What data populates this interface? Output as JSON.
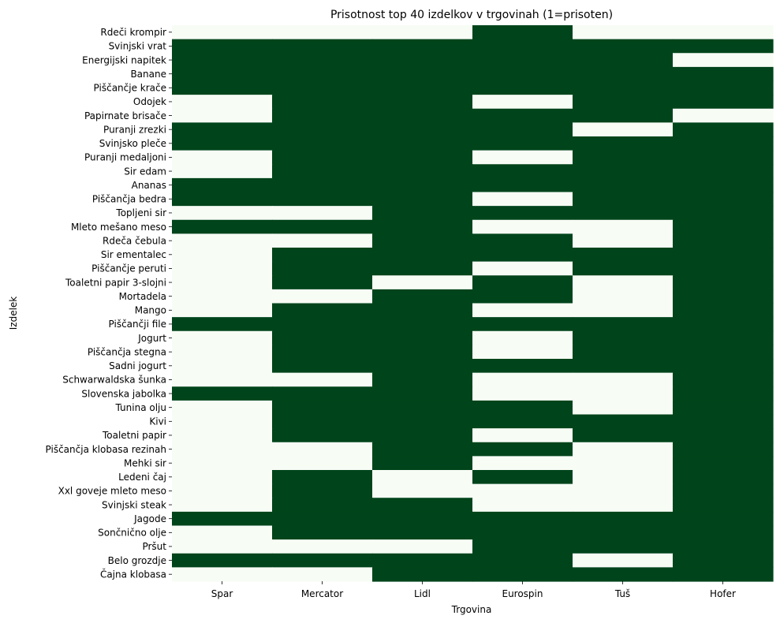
{
  "chart_data": {
    "type": "heatmap",
    "title": "Prisotnost top 40 izdelkov v trgovinah (1=prisoten)",
    "xlabel": "Trgovina",
    "ylabel": "Izdelek",
    "colors": {
      "present": "#00441b",
      "absent": "#f7fcf5"
    },
    "value_range": [
      0,
      1
    ],
    "colorbar": false,
    "grid": false,
    "stores": [
      "Spar",
      "Mercator",
      "Lidl",
      "Eurospin",
      "Tuš",
      "Hofer"
    ],
    "products": [
      "Rdeči krompir",
      "Svinjski vrat",
      "Energijski napitek",
      "Banane",
      "Piščančje krače",
      "Odojek",
      "Papirnate brisače",
      "Puranji zrezki",
      "Svinjsko pleče",
      "Puranji medaljoni",
      "Sir edam",
      "Ananas",
      "Piščančja bedra",
      "Topljeni sir",
      "Mleto mešano meso",
      "Rdeča čebula",
      "Sir ementalec",
      "Piščančje peruti",
      "Toaletni papir 3-slojni",
      "Mortadela",
      "Mango",
      "Piščančji file",
      "Jogurt",
      "Piščančja stegna",
      "Sadni jogurt",
      "Schwarwaldska šunka",
      "Slovenska jabolka",
      "Tunina olju",
      "Kivi",
      "Toaletni papir",
      "Piščančja klobasa rezinah",
      "Mehki sir",
      "Ledeni čaj",
      "Xxl goveje mleto meso",
      "Svinjski steak",
      "Jagode",
      "Sončnično olje",
      "Pršut",
      "Belo grozdje",
      "Čajna klobasa"
    ],
    "values": [
      [
        0,
        0,
        0,
        1,
        0,
        0
      ],
      [
        1,
        1,
        1,
        1,
        1,
        1
      ],
      [
        1,
        1,
        1,
        1,
        1,
        0
      ],
      [
        1,
        1,
        1,
        1,
        1,
        1
      ],
      [
        1,
        1,
        1,
        1,
        1,
        1
      ],
      [
        0,
        1,
        1,
        0,
        1,
        1
      ],
      [
        0,
        1,
        1,
        1,
        1,
        0
      ],
      [
        1,
        1,
        1,
        1,
        0,
        1
      ],
      [
        1,
        1,
        1,
        1,
        1,
        1
      ],
      [
        0,
        1,
        1,
        0,
        1,
        1
      ],
      [
        0,
        1,
        1,
        1,
        1,
        1
      ],
      [
        1,
        1,
        1,
        1,
        1,
        1
      ],
      [
        1,
        1,
        1,
        0,
        1,
        1
      ],
      [
        0,
        0,
        1,
        1,
        1,
        1
      ],
      [
        1,
        1,
        1,
        0,
        0,
        1
      ],
      [
        0,
        0,
        1,
        1,
        0,
        1
      ],
      [
        0,
        1,
        1,
        1,
        1,
        1
      ],
      [
        0,
        1,
        1,
        0,
        1,
        1
      ],
      [
        0,
        1,
        0,
        1,
        0,
        1
      ],
      [
        0,
        0,
        1,
        1,
        0,
        1
      ],
      [
        0,
        1,
        1,
        0,
        0,
        1
      ],
      [
        1,
        1,
        1,
        1,
        1,
        1
      ],
      [
        0,
        1,
        1,
        0,
        1,
        1
      ],
      [
        0,
        1,
        1,
        0,
        1,
        1
      ],
      [
        0,
        1,
        1,
        1,
        1,
        1
      ],
      [
        0,
        0,
        1,
        0,
        0,
        1
      ],
      [
        1,
        1,
        1,
        0,
        0,
        1
      ],
      [
        0,
        1,
        1,
        1,
        0,
        1
      ],
      [
        0,
        1,
        1,
        1,
        1,
        1
      ],
      [
        0,
        1,
        1,
        0,
        1,
        1
      ],
      [
        0,
        0,
        1,
        1,
        0,
        1
      ],
      [
        0,
        0,
        1,
        0,
        0,
        1
      ],
      [
        0,
        1,
        0,
        1,
        0,
        1
      ],
      [
        0,
        1,
        0,
        0,
        0,
        1
      ],
      [
        0,
        1,
        1,
        0,
        0,
        1
      ],
      [
        1,
        1,
        1,
        1,
        1,
        1
      ],
      [
        0,
        1,
        1,
        1,
        1,
        1
      ],
      [
        0,
        0,
        0,
        1,
        1,
        1
      ],
      [
        1,
        1,
        1,
        1,
        0,
        1
      ],
      [
        0,
        0,
        1,
        1,
        1,
        1
      ]
    ]
  }
}
